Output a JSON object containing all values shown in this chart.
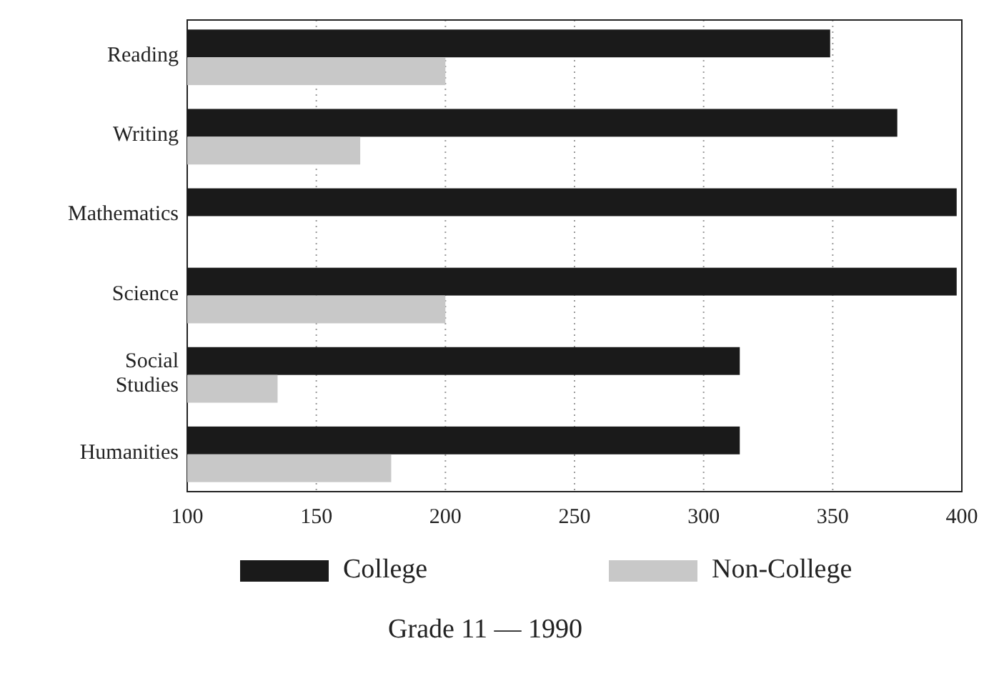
{
  "chart_data": {
    "type": "bar",
    "orientation": "horizontal",
    "title": "Grade 11 — 1990",
    "categories": [
      "Reading",
      "Writing",
      "Mathematics",
      "Science",
      "Social Studies",
      "Humanities"
    ],
    "series": [
      {
        "name": "College",
        "color": "#1a1a1a",
        "values": [
          349,
          375,
          398,
          398,
          314,
          314
        ]
      },
      {
        "name": "Non-College",
        "color": "#c8c8c8",
        "values": [
          200,
          167,
          null,
          200,
          135,
          179
        ]
      }
    ],
    "xlim": [
      100,
      400
    ],
    "xticks": [
      100,
      150,
      200,
      250,
      300,
      350,
      400
    ],
    "grid": "x",
    "legend": "bottom"
  }
}
